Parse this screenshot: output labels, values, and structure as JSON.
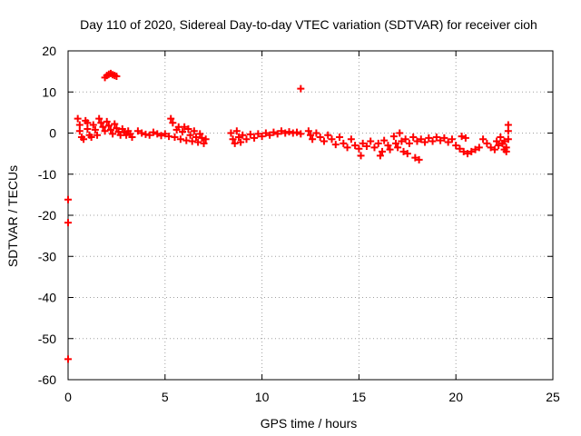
{
  "chart_data": {
    "type": "scatter",
    "title": "Day 110 of 2020, Sidereal Day-to-day VTEC variation (SDTVAR) for receiver cioh",
    "xlabel": "GPS time / hours",
    "ylabel": "SDTVAR / TECUs",
    "xlim": [
      0,
      25
    ],
    "ylim": [
      -60,
      20
    ],
    "xticks": [
      0,
      5,
      10,
      15,
      20,
      25
    ],
    "yticks": [
      20,
      10,
      0,
      -10,
      -20,
      -30,
      -40,
      -50,
      -60
    ],
    "grid": true,
    "marker": "+",
    "series": [
      {
        "name": "SDTVAR",
        "color": "#ff0000",
        "points": [
          [
            0.0,
            -16.2
          ],
          [
            0.0,
            -21.8
          ],
          [
            0.0,
            -55.0
          ],
          [
            0.5,
            3.5
          ],
          [
            0.6,
            2.0
          ],
          [
            0.6,
            0.5
          ],
          [
            0.7,
            -1.0
          ],
          [
            0.8,
            -1.5
          ],
          [
            0.9,
            3.0
          ],
          [
            1.0,
            2.5
          ],
          [
            1.0,
            1.0
          ],
          [
            1.1,
            -0.5
          ],
          [
            1.2,
            -1.0
          ],
          [
            1.3,
            2.0
          ],
          [
            1.4,
            0.8
          ],
          [
            1.5,
            -0.5
          ],
          [
            1.6,
            3.5
          ],
          [
            1.7,
            2.5
          ],
          [
            1.8,
            1.5
          ],
          [
            1.9,
            0.5
          ],
          [
            2.0,
            2.8
          ],
          [
            2.1,
            1.8
          ],
          [
            2.2,
            0.8
          ],
          [
            2.3,
            -0.2
          ],
          [
            2.4,
            2.2
          ],
          [
            2.5,
            1.2
          ],
          [
            2.6,
            0.3
          ],
          [
            2.7,
            -0.5
          ],
          [
            2.8,
            1.0
          ],
          [
            2.9,
            0.2
          ],
          [
            3.0,
            -0.5
          ],
          [
            3.1,
            0.5
          ],
          [
            3.2,
            -0.2
          ],
          [
            3.3,
            -1.0
          ],
          [
            1.9,
            13.5
          ],
          [
            2.0,
            14.0
          ],
          [
            2.1,
            14.3
          ],
          [
            2.2,
            14.5
          ],
          [
            2.3,
            14.2
          ],
          [
            2.4,
            14.0
          ],
          [
            2.5,
            13.8
          ],
          [
            3.6,
            0.5
          ],
          [
            3.8,
            0.0
          ],
          [
            4.0,
            -0.3
          ],
          [
            4.2,
            -0.5
          ],
          [
            4.4,
            0.2
          ],
          [
            4.6,
            -0.2
          ],
          [
            4.8,
            -0.6
          ],
          [
            5.0,
            -0.2
          ],
          [
            5.2,
            -0.8
          ],
          [
            5.3,
            3.5
          ],
          [
            5.4,
            2.5
          ],
          [
            5.5,
            -1.0
          ],
          [
            5.6,
            0.8
          ],
          [
            5.7,
            1.5
          ],
          [
            5.8,
            -1.5
          ],
          [
            5.9,
            0.3
          ],
          [
            6.0,
            1.5
          ],
          [
            6.1,
            -1.8
          ],
          [
            6.2,
            1.0
          ],
          [
            6.3,
            -0.5
          ],
          [
            6.4,
            -2.0
          ],
          [
            6.5,
            0.5
          ],
          [
            6.6,
            -1.0
          ],
          [
            6.7,
            -2.2
          ],
          [
            6.8,
            -0.2
          ],
          [
            6.9,
            -1.2
          ],
          [
            7.0,
            -2.5
          ],
          [
            7.1,
            -1.5
          ],
          [
            8.4,
            0.0
          ],
          [
            8.5,
            -1.5
          ],
          [
            8.6,
            -2.5
          ],
          [
            8.7,
            0.5
          ],
          [
            8.8,
            -1.0
          ],
          [
            8.9,
            -2.2
          ],
          [
            9.0,
            -0.5
          ],
          [
            9.2,
            -1.5
          ],
          [
            9.4,
            -0.3
          ],
          [
            9.6,
            -1.2
          ],
          [
            9.8,
            -0.2
          ],
          [
            10.0,
            -0.8
          ],
          [
            10.2,
            0.0
          ],
          [
            10.4,
            -0.5
          ],
          [
            10.6,
            0.2
          ],
          [
            10.8,
            -0.2
          ],
          [
            11.0,
            0.5
          ],
          [
            11.2,
            0.0
          ],
          [
            11.4,
            0.3
          ],
          [
            11.6,
            0.0
          ],
          [
            11.8,
            0.2
          ],
          [
            12.0,
            -0.2
          ],
          [
            12.0,
            10.8
          ],
          [
            12.4,
            0.5
          ],
          [
            12.5,
            -0.5
          ],
          [
            12.6,
            -1.5
          ],
          [
            12.8,
            0.0
          ],
          [
            13.0,
            -1.0
          ],
          [
            13.2,
            -2.0
          ],
          [
            13.4,
            -0.5
          ],
          [
            13.6,
            -1.5
          ],
          [
            13.8,
            -2.8
          ],
          [
            14.0,
            -1.0
          ],
          [
            14.2,
            -2.5
          ],
          [
            14.4,
            -3.5
          ],
          [
            14.6,
            -1.5
          ],
          [
            14.8,
            -3.0
          ],
          [
            15.0,
            -3.8
          ],
          [
            15.1,
            -5.5
          ],
          [
            15.2,
            -2.5
          ],
          [
            15.4,
            -3.2
          ],
          [
            15.6,
            -2.0
          ],
          [
            15.8,
            -3.5
          ],
          [
            16.0,
            -2.5
          ],
          [
            16.1,
            -5.5
          ],
          [
            16.2,
            -4.5
          ],
          [
            16.3,
            -1.8
          ],
          [
            16.5,
            -3.0
          ],
          [
            16.6,
            -4.0
          ],
          [
            16.8,
            -0.8
          ],
          [
            16.9,
            -2.5
          ],
          [
            17.0,
            -3.5
          ],
          [
            17.1,
            0.0
          ],
          [
            17.2,
            -2.0
          ],
          [
            17.3,
            -4.5
          ],
          [
            17.4,
            -1.5
          ],
          [
            17.5,
            -5.0
          ],
          [
            17.6,
            -2.5
          ],
          [
            17.8,
            -1.0
          ],
          [
            17.9,
            -6.0
          ],
          [
            18.0,
            -2.0
          ],
          [
            18.1,
            -6.5
          ],
          [
            18.2,
            -1.5
          ],
          [
            18.4,
            -2.2
          ],
          [
            18.6,
            -1.2
          ],
          [
            18.8,
            -2.0
          ],
          [
            19.0,
            -1.0
          ],
          [
            19.2,
            -1.8
          ],
          [
            19.4,
            -1.2
          ],
          [
            19.6,
            -2.2
          ],
          [
            19.8,
            -1.5
          ],
          [
            20.0,
            -3.0
          ],
          [
            20.2,
            -3.8
          ],
          [
            20.3,
            -0.8
          ],
          [
            20.4,
            -4.5
          ],
          [
            20.5,
            -1.2
          ],
          [
            20.6,
            -5.0
          ],
          [
            20.8,
            -4.5
          ],
          [
            21.0,
            -4.0
          ],
          [
            21.2,
            -3.5
          ],
          [
            21.4,
            -1.5
          ],
          [
            21.6,
            -2.5
          ],
          [
            21.8,
            -3.5
          ],
          [
            22.0,
            -4.0
          ],
          [
            22.1,
            -2.0
          ],
          [
            22.2,
            -3.0
          ],
          [
            22.3,
            -1.0
          ],
          [
            22.4,
            -2.5
          ],
          [
            22.5,
            -4.0
          ],
          [
            22.6,
            -3.5
          ],
          [
            22.7,
            -1.5
          ],
          [
            22.7,
            0.5
          ],
          [
            22.7,
            2.0
          ],
          [
            22.6,
            -4.5
          ],
          [
            22.5,
            -2.0
          ]
        ]
      }
    ]
  }
}
